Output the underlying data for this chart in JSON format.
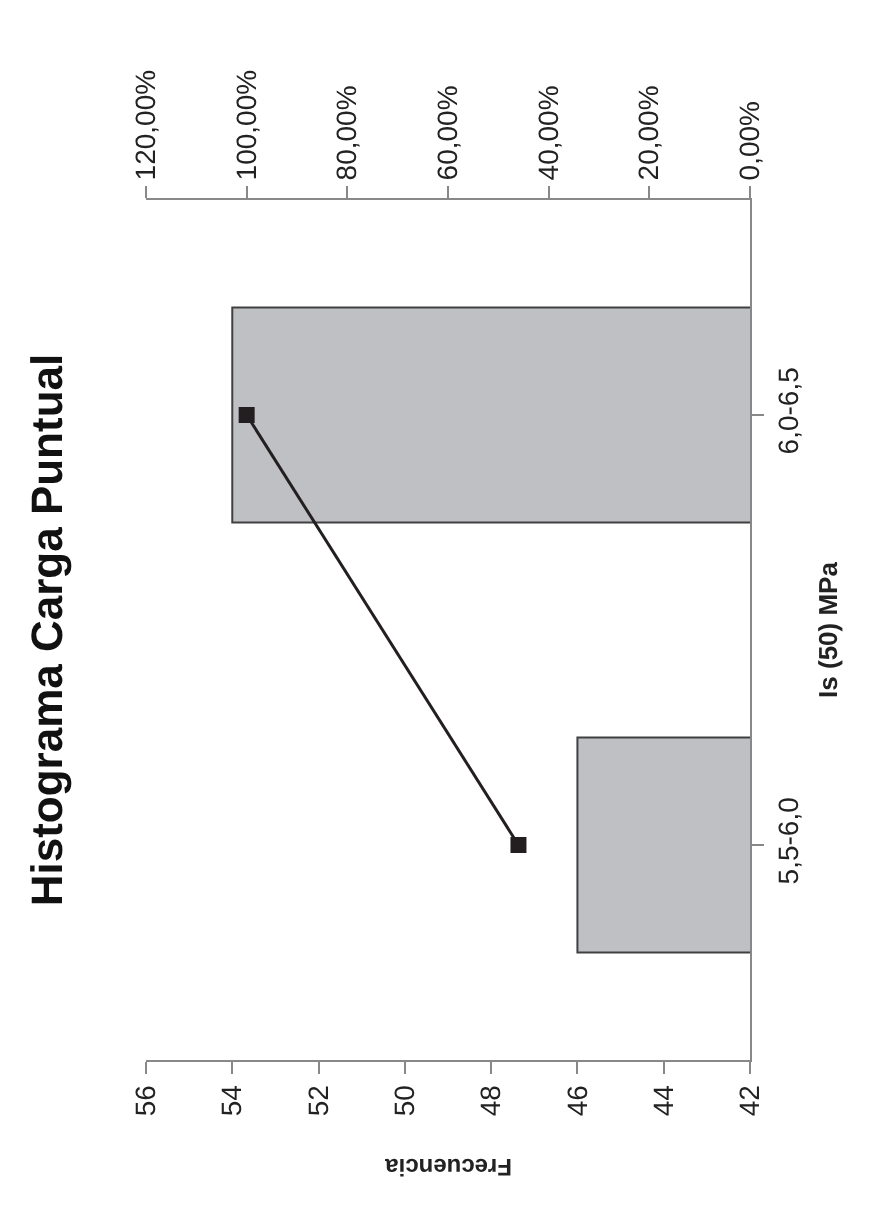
{
  "chart_data": {
    "type": "bar",
    "orientation": "horizontal",
    "title": "Histograma Carga Puntual",
    "xlabel": "Frecuencia",
    "ylabel": "Is (50) MPa",
    "categories": [
      "6,0-6,5",
      "5,5-6,0"
    ],
    "series": [
      {
        "color": "#bfc0c4",
        "values": [
          54,
          46
        ]
      },
      {
        "type": "line",
        "axis": "x2",
        "color": "#231f20",
        "marker": "square",
        "values": [
          100,
          46
        ]
      }
    ],
    "xlim": [
      56,
      42
    ],
    "xticks": [
      56,
      54,
      52,
      50,
      48,
      46,
      44,
      42
    ],
    "x2lim": [
      120,
      0
    ],
    "x2ticks": [
      {
        "value": 120,
        "label": "120,00%"
      },
      {
        "value": 100,
        "label": "100,00%"
      },
      {
        "value": 80,
        "label": "80,00%"
      },
      {
        "value": 60,
        "label": "60,00%"
      },
      {
        "value": 40,
        "label": "40,00%"
      },
      {
        "value": 20,
        "label": "20,00%"
      },
      {
        "value": 0,
        "label": "0,00%"
      }
    ],
    "grid": false,
    "legend": false
  }
}
